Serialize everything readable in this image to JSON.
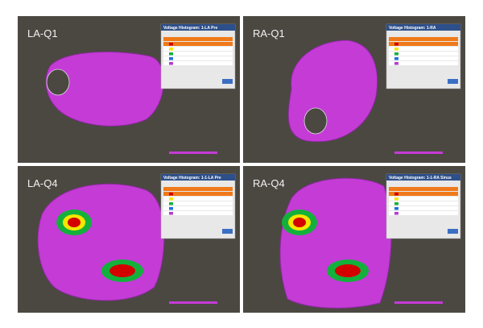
{
  "panels": [
    {
      "label": "LA-Q1",
      "histogram_title": "Voltage Histogram: 1-LA Pre"
    },
    {
      "label": "RA-Q1",
      "histogram_title": "Voltage Histogram: 1-RA"
    },
    {
      "label": "LA-Q4",
      "histogram_title": "Voltage Histogram: 1-1-LA Pre"
    },
    {
      "label": "RA-Q4",
      "histogram_title": "Voltage Histogram: 1-1-RA Sinus"
    }
  ]
}
